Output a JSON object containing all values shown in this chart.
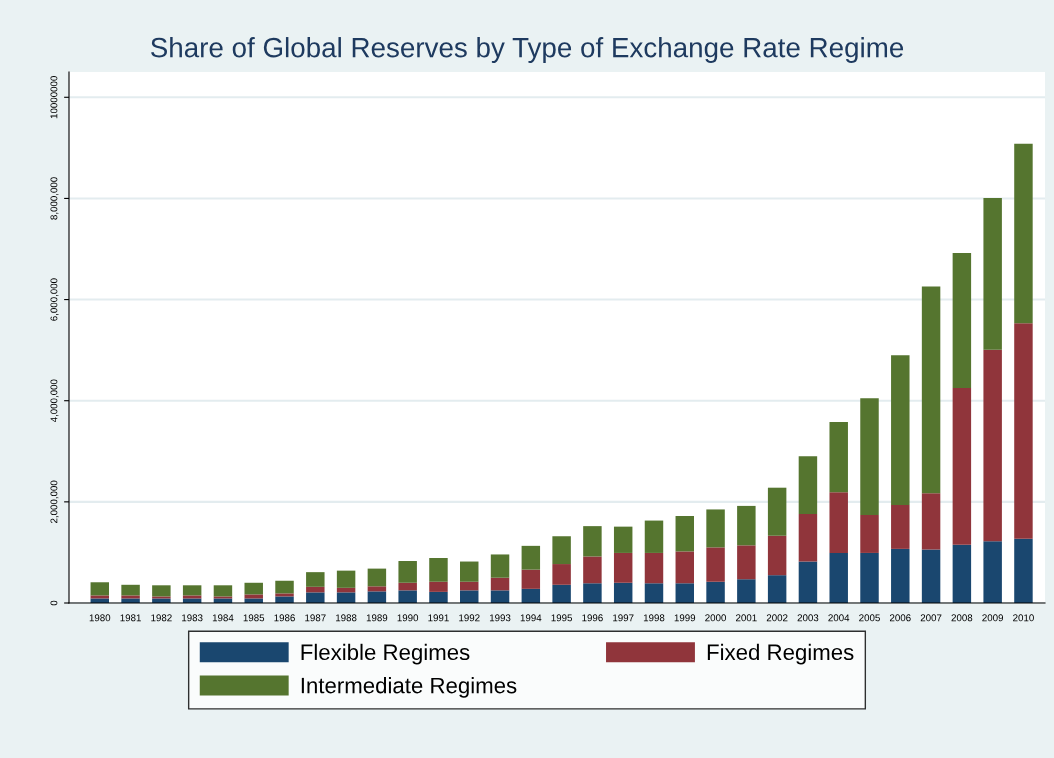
{
  "chart_data": {
    "type": "bar",
    "stacked": true,
    "title": "Share of Global Reserves by Type of Exchange Rate Regime",
    "categories": [
      "1980",
      "1981",
      "1982",
      "1983",
      "1984",
      "1985",
      "1986",
      "1987",
      "1988",
      "1989",
      "1990",
      "1991",
      "1992",
      "1993",
      "1994",
      "1995",
      "1996",
      "1997",
      "1998",
      "1999",
      "2000",
      "2001",
      "2002",
      "2003",
      "2004",
      "2005",
      "2006",
      "2007",
      "2008",
      "2009",
      "2010"
    ],
    "series": [
      {
        "name": "Flexible Regimes",
        "color": "#1a476f",
        "values": [
          90000,
          90000,
          90000,
          90000,
          90000,
          90000,
          130000,
          210000,
          210000,
          230000,
          250000,
          220000,
          250000,
          250000,
          280000,
          360000,
          390000,
          400000,
          390000,
          390000,
          420000,
          470000,
          550000,
          820000,
          990000,
          990000,
          1070000,
          1060000,
          1150000,
          1220000,
          1270000
        ]
      },
      {
        "name": "Fixed Regimes",
        "color": "#90353b",
        "values": [
          60000,
          60000,
          40000,
          60000,
          40000,
          80000,
          60000,
          110000,
          90000,
          100000,
          150000,
          200000,
          170000,
          250000,
          380000,
          410000,
          530000,
          590000,
          600000,
          630000,
          680000,
          670000,
          780000,
          940000,
          1200000,
          750000,
          870000,
          1110000,
          3100000,
          3790000,
          4260000
        ]
      },
      {
        "name": "Intermediate Regimes",
        "color": "#55752f",
        "values": [
          260000,
          210000,
          220000,
          200000,
          220000,
          230000,
          250000,
          290000,
          340000,
          350000,
          430000,
          470000,
          400000,
          460000,
          470000,
          550000,
          600000,
          520000,
          640000,
          700000,
          750000,
          780000,
          950000,
          1140000,
          1390000,
          2310000,
          2960000,
          4090000,
          2670000,
          3000000,
          3550000
        ]
      }
    ],
    "ylim": [
      0,
      10500000
    ],
    "yticks": [
      0,
      {
        "value": 2000000,
        "label": "2,000,000"
      },
      {
        "value": 4000000,
        "label": "4,000,000"
      },
      {
        "value": 6000000,
        "label": "6,000,000"
      },
      {
        "value": 8000000,
        "label": "8,000,000"
      },
      10000000
    ],
    "grid": "y",
    "legend": "bottom"
  }
}
